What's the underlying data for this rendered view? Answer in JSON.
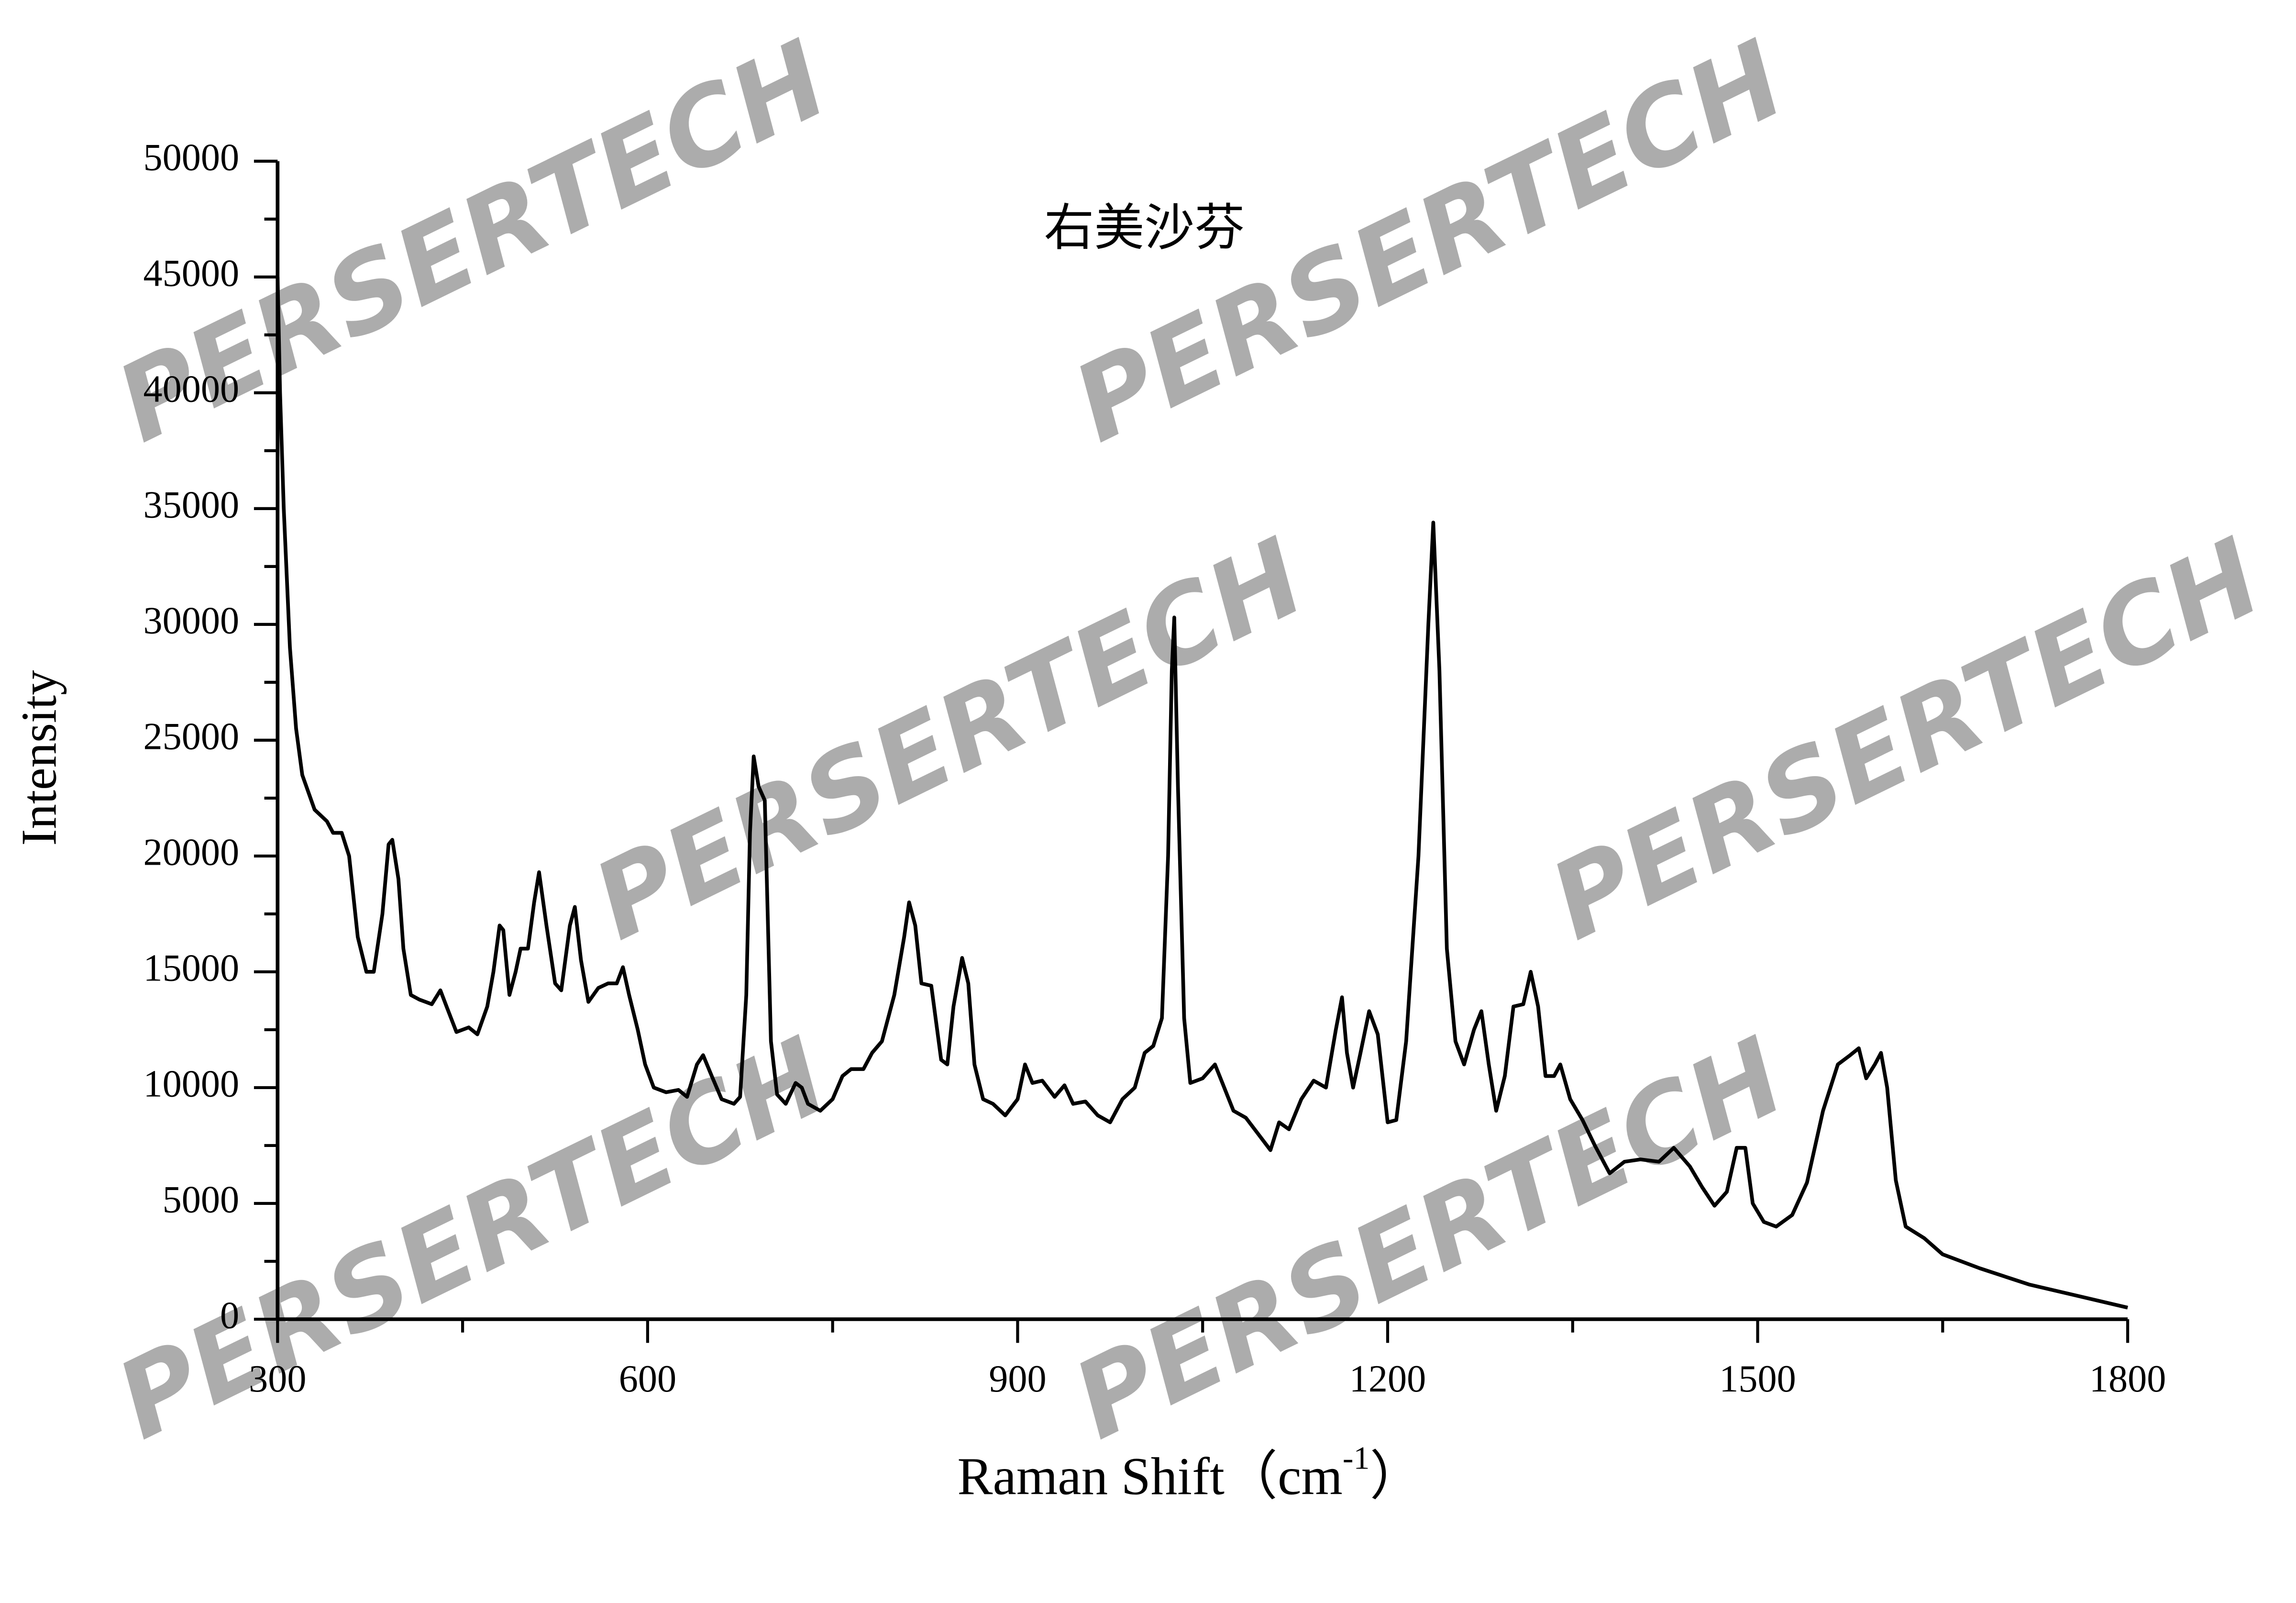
{
  "chart_data": {
    "type": "line",
    "title": "右美沙芬",
    "x_label": {
      "text": "Raman Shift（cm",
      "sup": "-1",
      "close": "）"
    },
    "y_label": "Intensity",
    "watermark": "PERSERTECH",
    "xlim": [
      300,
      1800
    ],
    "xticks": [
      300,
      600,
      900,
      1200,
      1500,
      1800
    ],
    "xminor": [
      450,
      750,
      1050,
      1350,
      1650
    ],
    "ylim": [
      0,
      50000
    ],
    "yticks": [
      0,
      5000,
      10000,
      15000,
      20000,
      25000,
      30000,
      35000,
      40000,
      45000,
      50000
    ],
    "yminor": [
      2500,
      7500,
      12500,
      17500,
      22500,
      27500,
      32500,
      37500,
      42500,
      47500
    ],
    "series": [
      {
        "name": "右美沙芬",
        "color": "#000000",
        "x": [
          300,
          302,
          305,
          310,
          315,
          320,
          330,
          340,
          345,
          352,
          358,
          365,
          372,
          378,
          385,
          390,
          393,
          398,
          402,
          408,
          415,
          425,
          432,
          437,
          445,
          455,
          462,
          470,
          475,
          480,
          483,
          488,
          493,
          497,
          503,
          508,
          512,
          518,
          525,
          530,
          537,
          541,
          546,
          552,
          560,
          568,
          575,
          580,
          585,
          592,
          598,
          605,
          615,
          625,
          632,
          640,
          645,
          652,
          660,
          670,
          675,
          680,
          683,
          686,
          690,
          695,
          700,
          705,
          712,
          720,
          725,
          730,
          740,
          750,
          758,
          765,
          775,
          782,
          790,
          800,
          808,
          812,
          817,
          822,
          830,
          838,
          843,
          848,
          855,
          860,
          865,
          872,
          880,
          890,
          900,
          906,
          912,
          920,
          930,
          938,
          945,
          955,
          965,
          975,
          985,
          995,
          1003,
          1010,
          1017,
          1022,
          1025,
          1027,
          1030,
          1035,
          1040,
          1050,
          1060,
          1066,
          1075,
          1085,
          1095,
          1105,
          1112,
          1120,
          1130,
          1140,
          1150,
          1158,
          1163,
          1167,
          1172,
          1178,
          1185,
          1192,
          1200,
          1207,
          1215,
          1225,
          1233,
          1237,
          1242,
          1248,
          1255,
          1262,
          1270,
          1276,
          1282,
          1288,
          1295,
          1302,
          1310,
          1316,
          1322,
          1328,
          1335,
          1340,
          1348,
          1358,
          1368,
          1380,
          1392,
          1405,
          1420,
          1432,
          1445,
          1455,
          1465,
          1475,
          1483,
          1490,
          1496,
          1505,
          1515,
          1528,
          1540,
          1553,
          1565,
          1575,
          1582,
          1588,
          1595,
          1600,
          1605,
          1612,
          1620,
          1635,
          1650,
          1680,
          1720,
          1760,
          1800
        ],
        "values": [
          45000,
          40000,
          35000,
          29000,
          25500,
          23500,
          22000,
          21500,
          21000,
          21000,
          20000,
          16500,
          15000,
          15000,
          17500,
          20500,
          20700,
          19000,
          16000,
          14000,
          13800,
          13600,
          14200,
          13500,
          12400,
          12600,
          12300,
          13500,
          15000,
          17000,
          16800,
          14000,
          15000,
          16000,
          16000,
          18000,
          19300,
          17000,
          14500,
          14200,
          17000,
          17800,
          15500,
          13700,
          14300,
          14500,
          14500,
          15200,
          14000,
          12500,
          11000,
          10000,
          9800,
          9900,
          9600,
          11000,
          11400,
          10500,
          9500,
          9300,
          9600,
          14000,
          21000,
          24300,
          23000,
          22400,
          12000,
          9700,
          9300,
          10200,
          10000,
          9300,
          9000,
          9500,
          10500,
          10800,
          10800,
          11500,
          12000,
          14000,
          16500,
          18000,
          17000,
          14500,
          14400,
          11200,
          11000,
          13500,
          15600,
          14500,
          11000,
          9500,
          9300,
          8800,
          9500,
          11000,
          10200,
          10300,
          9600,
          10100,
          9300,
          9400,
          8800,
          8500,
          9500,
          10000,
          11500,
          11800,
          13000,
          20000,
          28000,
          30300,
          23000,
          13000,
          10200,
          10400,
          11000,
          10200,
          9000,
          8700,
          8000,
          7300,
          8500,
          8200,
          9500,
          10300,
          10000,
          12500,
          13900,
          11500,
          10000,
          11500,
          13300,
          12300,
          8500,
          8600,
          12000,
          20000,
          30000,
          34400,
          28000,
          16000,
          12000,
          11000,
          12500,
          13300,
          11000,
          9000,
          10500,
          13500,
          13600,
          15000,
          13500,
          10500,
          10500,
          11000,
          9500,
          8600,
          7500,
          6300,
          6800,
          6900,
          6800,
          7400,
          6600,
          5700,
          4900,
          5500,
          7400,
          7400,
          5000,
          4200,
          4000,
          4500,
          5900,
          9000,
          11000,
          11400,
          11700,
          10400,
          11000,
          11500,
          10000,
          6000,
          4000,
          3500,
          2800,
          2200,
          1500,
          1000,
          500
        ]
      }
    ]
  }
}
